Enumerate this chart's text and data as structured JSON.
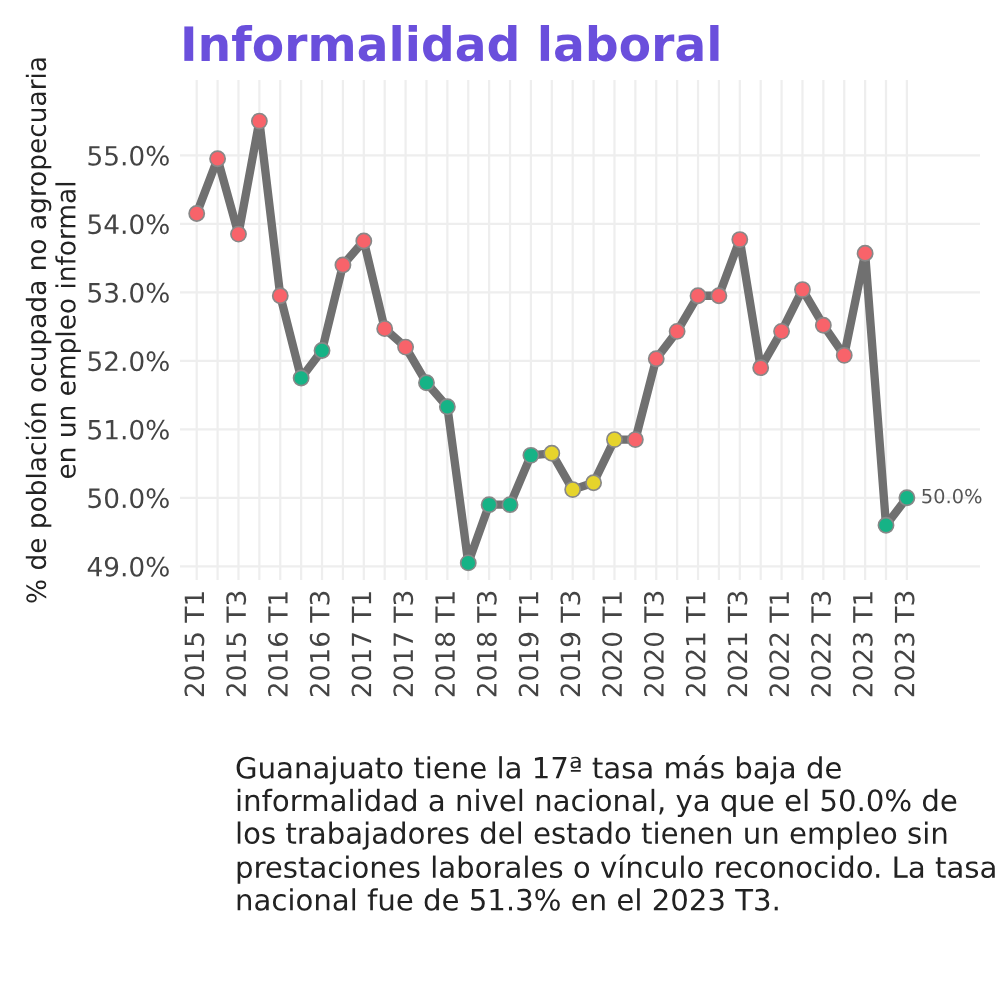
{
  "chart_data": {
    "type": "line",
    "title": "Informalidad laboral",
    "ylabel": "% de población ocupada no agropecuaria\nen un empleo informal",
    "categories": [
      "2015 T1",
      null,
      "2015 T3",
      null,
      "2016 T1",
      null,
      "2016 T3",
      null,
      "2017 T1",
      null,
      "2017 T3",
      null,
      "2018 T1",
      null,
      "2018 T3",
      null,
      "2019 T1",
      null,
      "2019 T3",
      null,
      "2020 T1",
      null,
      "2020 T3",
      null,
      "2021 T1",
      null,
      "2021 T3",
      null,
      "2022 T1",
      null,
      "2022 T3",
      null,
      "2023 T1",
      null,
      "2023 T3"
    ],
    "series": [
      {
        "color": "#707070",
        "values": [
          54.15,
          54.95,
          53.85,
          55.5,
          52.95,
          51.75,
          52.15,
          53.4,
          53.75,
          52.47,
          52.2,
          51.68,
          51.33,
          49.05,
          49.9,
          49.9,
          50.62,
          50.65,
          50.12,
          50.22,
          50.85,
          50.85,
          52.03,
          52.43,
          52.95,
          52.95,
          53.77,
          51.9,
          52.43,
          53.04,
          52.52,
          52.08,
          53.57,
          49.6,
          50.0
        ],
        "colors": [
          "#f8636a",
          "#f8636a",
          "#f8636a",
          "#f8636a",
          "#f8636a",
          "#16b386",
          "#16b386",
          "#f8636a",
          "#f8636a",
          "#f8636a",
          "#f8636a",
          "#16b386",
          "#16b386",
          "#16b386",
          "#16b386",
          "#16b386",
          "#16b386",
          "#e6d42c",
          "#e6d42c",
          "#e6d42c",
          "#e6d42c",
          "#f8636a",
          "#f8636a",
          "#f8636a",
          "#f8636a",
          "#f8636a",
          "#f8636a",
          "#f8636a",
          "#f8636a",
          "#f8636a",
          "#f8636a",
          "#f8636a",
          "#f8636a",
          "#16b386",
          "#16b386"
        ],
        "value_labels": [
          null,
          null,
          null,
          null,
          null,
          null,
          null,
          null,
          null,
          null,
          null,
          null,
          null,
          null,
          null,
          null,
          null,
          null,
          null,
          null,
          null,
          null,
          null,
          null,
          null,
          null,
          null,
          null,
          null,
          null,
          null,
          null,
          null,
          null,
          "50.0%"
        ]
      }
    ],
    "ylim": [
      48.8,
      56.1
    ],
    "yticks": [
      {
        "value": 49,
        "label": "49.0%"
      },
      {
        "value": 50,
        "label": "50.0%"
      },
      {
        "value": 51,
        "label": "51.0%"
      },
      {
        "value": 52,
        "label": "52.0%"
      },
      {
        "value": 53,
        "label": "53.0%"
      },
      {
        "value": 54,
        "label": "54.0%"
      },
      {
        "value": 55,
        "label": "55.0%"
      }
    ],
    "grid": true,
    "marker": "circle",
    "line_style": "solid",
    "legend": false,
    "annotations": [
      "Guanajuato tiene la 17ª tasa más baja de informalidad a nivel nacional, ya que el 50.0% de los trabajadores del estado tienen un empleo sin prestaciones laborales o vínculo reconocido. La tasa nacional fue de 51.3% en el 2023 T3."
    ]
  }
}
